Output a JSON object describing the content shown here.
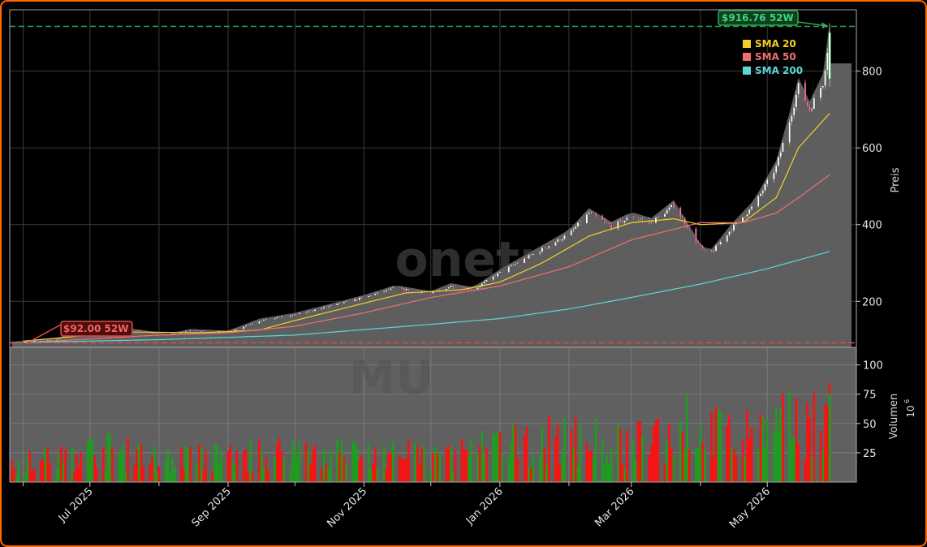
{
  "chart_data": {
    "type": "candlestick",
    "ticker_watermark": "MU",
    "brand_watermark": "onetrade",
    "price_axis": {
      "label": "Preis",
      "ticks": [
        200,
        400,
        600,
        800
      ],
      "ylim": [
        80,
        960
      ]
    },
    "volume_axis": {
      "label": "Volumen",
      "unit_base": "10",
      "unit_exp": "6",
      "ticks": [
        25,
        50,
        75,
        100
      ],
      "ylim": [
        0,
        115
      ]
    },
    "x_axis": {
      "range": [
        "2025-05-26",
        "2026-06-10"
      ],
      "ticks": [
        {
          "date": "2025-07-01",
          "label": "Jul 2025"
        },
        {
          "date": "2025-09-01",
          "label": "Sep 2025"
        },
        {
          "date": "2025-11-01",
          "label": "Nov 2025"
        },
        {
          "date": "2026-01-01",
          "label": "Jan 2026"
        },
        {
          "date": "2026-03-01",
          "label": "Mar 2026"
        },
        {
          "date": "2026-05-01",
          "label": "May 2026"
        }
      ],
      "minor_ticks": [
        "2025-06-01",
        "2025-08-01",
        "2025-10-01",
        "2025-12-01",
        "2026-02-01",
        "2026-04-01"
      ]
    },
    "high_52w": {
      "value": 916.76,
      "label": "$916.76 52W",
      "date": "2026-05-29"
    },
    "low_52w": {
      "value": 92.0,
      "label": "$92.00 52W",
      "date": "2025-06-03"
    },
    "legend": {
      "placement": "top-right",
      "entries": [
        {
          "name": "SMA 20",
          "color": "#f5d022"
        },
        {
          "name": "SMA 50",
          "color": "#f07070"
        },
        {
          "name": "SMA 200",
          "color": "#5ed6d6"
        }
      ]
    },
    "anchors": [
      [
        "2025-05-27",
        92
      ],
      [
        "2025-06-15",
        100
      ],
      [
        "2025-07-01",
        122
      ],
      [
        "2025-07-20",
        125
      ],
      [
        "2025-08-05",
        112
      ],
      [
        "2025-08-15",
        124
      ],
      [
        "2025-09-01",
        120
      ],
      [
        "2025-09-15",
        150
      ],
      [
        "2025-10-01",
        165
      ],
      [
        "2025-10-15",
        185
      ],
      [
        "2025-11-01",
        210
      ],
      [
        "2025-11-15",
        235
      ],
      [
        "2025-12-01",
        220
      ],
      [
        "2025-12-10",
        240
      ],
      [
        "2025-12-20",
        230
      ],
      [
        "2026-01-01",
        275
      ],
      [
        "2026-01-15",
        320
      ],
      [
        "2026-02-01",
        375
      ],
      [
        "2026-02-10",
        430
      ],
      [
        "2026-02-20",
        395
      ],
      [
        "2026-03-01",
        420
      ],
      [
        "2026-03-10",
        405
      ],
      [
        "2026-03-20",
        450
      ],
      [
        "2026-04-01",
        340
      ],
      [
        "2026-04-05",
        320
      ],
      [
        "2026-04-15",
        390
      ],
      [
        "2026-04-25",
        450
      ],
      [
        "2026-05-05",
        550
      ],
      [
        "2026-05-10",
        650
      ],
      [
        "2026-05-15",
        760
      ],
      [
        "2026-05-20",
        700
      ],
      [
        "2026-05-26",
        770
      ],
      [
        "2026-05-29",
        900
      ]
    ],
    "series": [
      {
        "name": "SMA 20",
        "values": [
          [
            "2025-06-01",
            96
          ],
          [
            "2025-07-01",
            112
          ],
          [
            "2025-07-20",
            120
          ],
          [
            "2025-08-20",
            118
          ],
          [
            "2025-09-15",
            125
          ],
          [
            "2025-10-01",
            150
          ],
          [
            "2025-11-01",
            195
          ],
          [
            "2025-11-20",
            222
          ],
          [
            "2025-12-15",
            230
          ],
          [
            "2026-01-01",
            250
          ],
          [
            "2026-01-20",
            300
          ],
          [
            "2026-02-10",
            370
          ],
          [
            "2026-03-01",
            405
          ],
          [
            "2026-03-20",
            415
          ],
          [
            "2026-04-01",
            400
          ],
          [
            "2026-04-20",
            405
          ],
          [
            "2026-05-05",
            470
          ],
          [
            "2026-05-15",
            600
          ],
          [
            "2026-05-29",
            690
          ]
        ]
      },
      {
        "name": "SMA 50",
        "values": [
          [
            "2025-06-01",
            92
          ],
          [
            "2025-07-01",
            102
          ],
          [
            "2025-08-01",
            112
          ],
          [
            "2025-09-01",
            118
          ],
          [
            "2025-10-01",
            135
          ],
          [
            "2025-11-01",
            170
          ],
          [
            "2025-12-01",
            210
          ],
          [
            "2026-01-01",
            240
          ],
          [
            "2026-02-01",
            290
          ],
          [
            "2026-03-01",
            360
          ],
          [
            "2026-04-01",
            405
          ],
          [
            "2026-04-20",
            405
          ],
          [
            "2026-05-05",
            430
          ],
          [
            "2026-05-15",
            470
          ],
          [
            "2026-05-29",
            530
          ]
        ]
      },
      {
        "name": "SMA 200",
        "values": [
          [
            "2025-06-01",
            93
          ],
          [
            "2025-08-01",
            100
          ],
          [
            "2025-10-01",
            112
          ],
          [
            "2025-12-01",
            140
          ],
          [
            "2026-01-01",
            155
          ],
          [
            "2026-02-01",
            180
          ],
          [
            "2026-03-01",
            210
          ],
          [
            "2026-04-01",
            245
          ],
          [
            "2026-05-01",
            285
          ],
          [
            "2026-05-29",
            330
          ]
        ]
      }
    ],
    "volume_anchors": [
      [
        "2025-05-27",
        15
      ],
      [
        "2025-06-20",
        22
      ],
      [
        "2025-07-05",
        28
      ],
      [
        "2025-08-01",
        20
      ],
      [
        "2025-09-10",
        22
      ],
      [
        "2025-10-01",
        28
      ],
      [
        "2025-11-01",
        24
      ],
      [
        "2025-12-01",
        22
      ],
      [
        "2026-01-01",
        30
      ],
      [
        "2026-02-01",
        38
      ],
      [
        "2026-03-01",
        30
      ],
      [
        "2026-03-25",
        50
      ],
      [
        "2026-04-20",
        38
      ],
      [
        "2026-05-15",
        52
      ],
      [
        "2026-05-29",
        60
      ]
    ]
  }
}
